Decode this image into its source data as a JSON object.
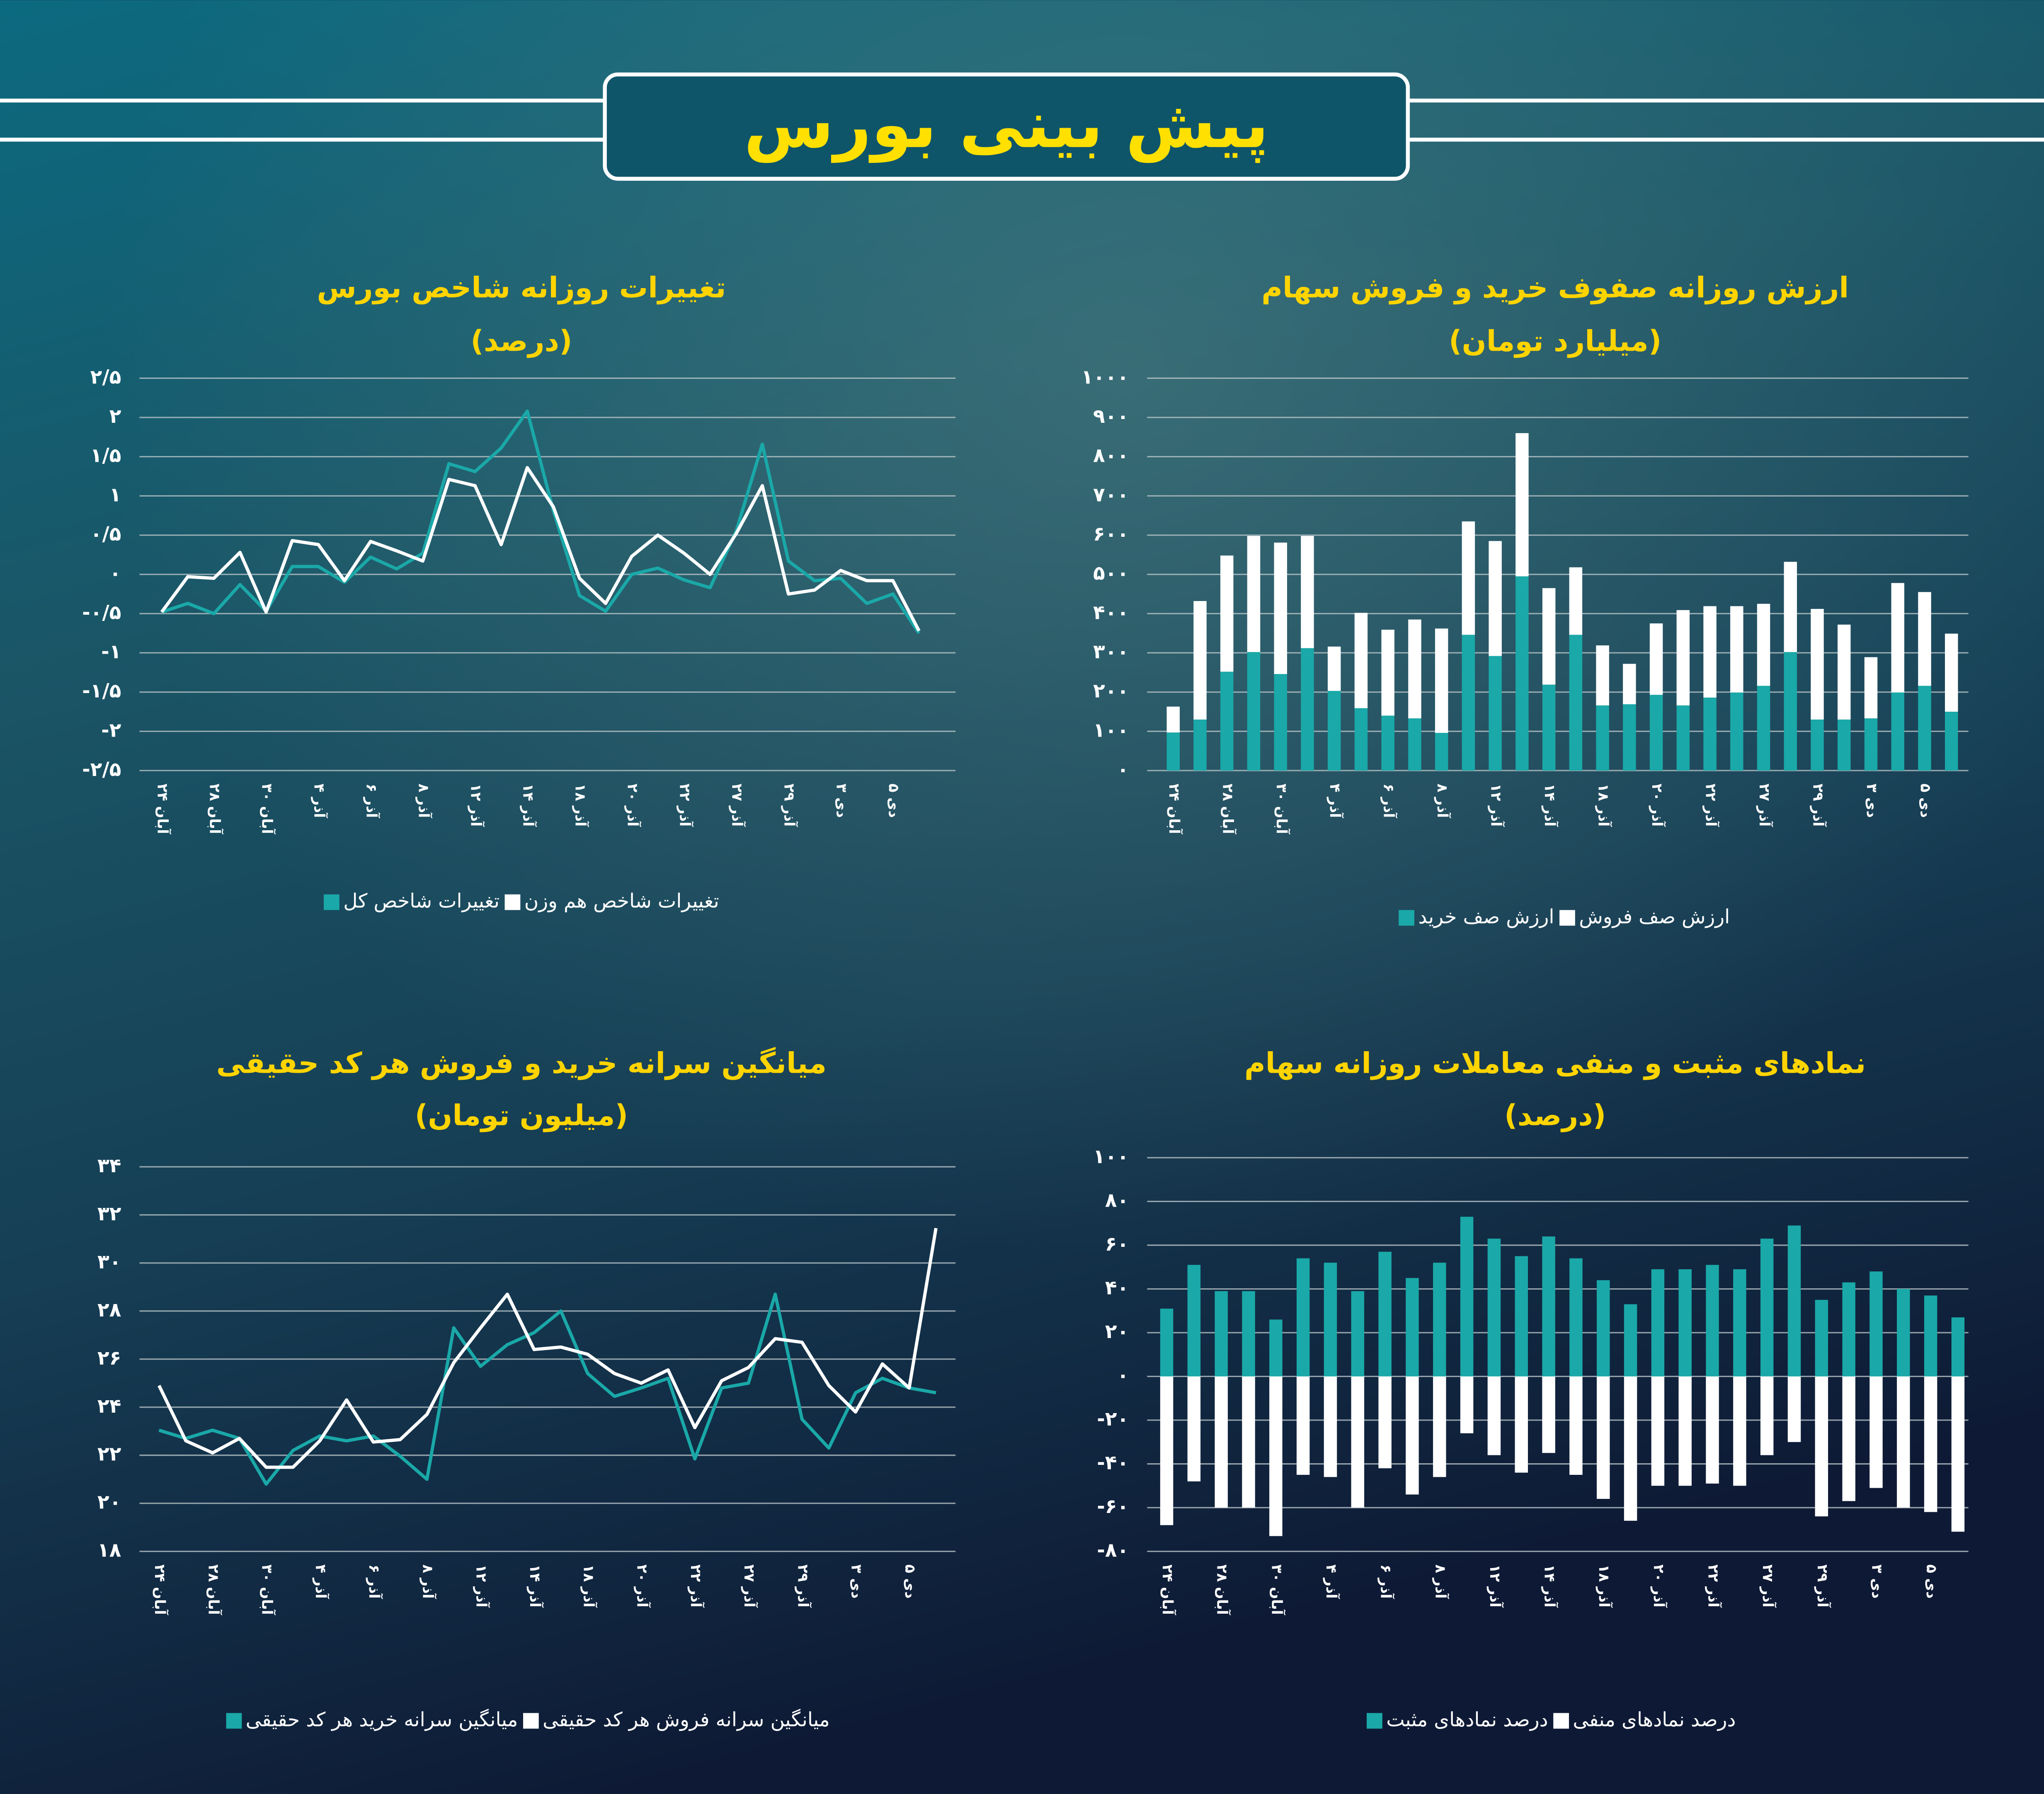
{
  "header": {
    "title": "پیش بینی بورس"
  },
  "chart_data": [
    {
      "type": "line",
      "title": "تغییرات روزانه شاخص بورس",
      "subtitle": "(درصد)",
      "categories": [
        "۲۴ آبان",
        null,
        "۲۸ آبان",
        null,
        "۳۰ آبان",
        null,
        "۴ آذر",
        null,
        "۶ آذر",
        null,
        "۸ آذر",
        null,
        "۱۲ آذر",
        null,
        "۱۴ آذر",
        null,
        "۱۸ آذر",
        null,
        "۲۰ آذر",
        null,
        "۲۲ آذر",
        null,
        "۲۷ آذر",
        null,
        "۲۹ آذر",
        null,
        "۳ دی",
        null,
        "۵ دی",
        null
      ],
      "series": [
        {
          "name": "تغییرات شاخص کل",
          "color": "#1aa8a8",
          "values": [
            -0.48,
            -0.37,
            -0.5,
            -0.13,
            -0.47,
            0.1,
            0.1,
            -0.1,
            0.22,
            0.07,
            0.27,
            1.41,
            1.31,
            1.61,
            2.08,
            0.81,
            -0.27,
            -0.47,
            0,
            0.08,
            -0.07,
            -0.17,
            0.55,
            1.66,
            0.17,
            -0.08,
            -0.05,
            -0.37,
            -0.25,
            -0.75
          ]
        },
        {
          "name": "تغییرات شاخص هم وزن",
          "color": "#ffffff",
          "values": [
            -0.48,
            -0.03,
            -0.05,
            0.28,
            -0.48,
            0.43,
            0.38,
            -0.08,
            0.42,
            0.3,
            0.17,
            1.21,
            1.13,
            0.38,
            1.36,
            0.86,
            -0.05,
            -0.37,
            0.23,
            0.5,
            0.27,
            0,
            0.52,
            1.13,
            -0.25,
            -0.2,
            0.05,
            -0.08,
            -0.08,
            -0.72
          ]
        }
      ],
      "ylim": [
        -2.5,
        2.5
      ],
      "yticks": [
        {
          "value": 2.5,
          "label": "۲/۵"
        },
        {
          "value": 2,
          "label": "۲"
        },
        {
          "value": 1.5,
          "label": "۱/۵"
        },
        {
          "value": 1,
          "label": "۱"
        },
        {
          "value": 0.5,
          "label": "۰/۵"
        },
        {
          "value": 0,
          "label": "۰"
        },
        {
          "value": -0.5,
          "label": "-۰/۵"
        },
        {
          "value": -1,
          "label": "-۱"
        },
        {
          "value": -1.5,
          "label": "-۱/۵"
        },
        {
          "value": -2,
          "label": "-۲"
        },
        {
          "value": -2.5,
          "label": "-۲/۵"
        }
      ],
      "grid": true
    },
    {
      "type": "bar",
      "stacked": true,
      "title": "ارزش روزانه صفوف خرید و فروش سهام",
      "subtitle": "(میلیارد تومان)",
      "categories": [
        "۲۴ آبان",
        null,
        "۲۸ آبان",
        null,
        "۳۰ آبان",
        null,
        "۴ آذر",
        null,
        "۶ آذر",
        null,
        "۸ آذر",
        null,
        "۱۲ آذر",
        null,
        "۱۴ آذر",
        null,
        "۱۸ آذر",
        null,
        "۲۰ آذر",
        null,
        "۲۲ آذر",
        null,
        "۲۷ آذر",
        null,
        "۲۹ آذر",
        null,
        "۳ دی",
        null,
        "۵ دی",
        null
      ],
      "series": [
        {
          "name": "ارزش صف خرید",
          "color": "#1aa8a8",
          "values": [
            97,
            130,
            252,
            302,
            246,
            312,
            203,
            159,
            140,
            133,
            96,
            346,
            292,
            495,
            219,
            346,
            166,
            169,
            193,
            166,
            186,
            199,
            216,
            302,
            130,
            130,
            133,
            199,
            216,
            150
          ]
        },
        {
          "name": "ارزش صف فروش",
          "color": "#ffffff",
          "values": [
            66,
            302,
            296,
            296,
            335,
            286,
            113,
            243,
            219,
            252,
            266,
            289,
            293,
            365,
            246,
            172,
            153,
            103,
            182,
            243,
            233,
            220,
            209,
            230,
            282,
            242,
            156,
            279,
            239,
            199
          ]
        }
      ],
      "ylim": [
        0,
        1000
      ],
      "yticks": [
        {
          "value": 0,
          "label": "۰"
        },
        {
          "value": 100,
          "label": "۱۰۰"
        },
        {
          "value": 200,
          "label": "۲۰۰"
        },
        {
          "value": 300,
          "label": "۳۰۰"
        },
        {
          "value": 400,
          "label": "۴۰۰"
        },
        {
          "value": 500,
          "label": "۵۰۰"
        },
        {
          "value": 600,
          "label": "۶۰۰"
        },
        {
          "value": 700,
          "label": "۷۰۰"
        },
        {
          "value": 800,
          "label": "۸۰۰"
        },
        {
          "value": 900,
          "label": "۹۰۰"
        },
        {
          "value": 1000,
          "label": "۱۰۰۰"
        }
      ],
      "grid": true
    },
    {
      "type": "line",
      "title": "میانگین سرانه خرید و فروش هر کد حقیقی",
      "subtitle": "(میلیون تومان)",
      "categories": [
        "۲۴ آبان",
        null,
        "۲۸ آبان",
        null,
        "۳۰ آبان",
        null,
        "۴ آذر",
        null,
        "۶ آذر",
        null,
        "۸ آذر",
        null,
        "۱۲ آذر",
        null,
        "۱۴ آذر",
        null,
        "۱۸ آذر",
        null,
        "۲۰ آذر",
        null,
        "۲۲ آذر",
        null,
        "۲۷ آذر",
        null,
        "۲۹ آذر",
        null,
        "۳ دی",
        null,
        "۵ دی",
        null
      ],
      "series": [
        {
          "name": "میانگین سرانه خرید هر کد حقیقی",
          "color": "#1aa8a8",
          "values": [
            23.04,
            22.7,
            23.04,
            22.7,
            20.8,
            22.2,
            22.8,
            22.6,
            22.8,
            21.96,
            21.0,
            27.3,
            25.7,
            26.6,
            27.1,
            28.0,
            25.4,
            24.45,
            24.8,
            25.2,
            21.85,
            24.8,
            25.0,
            28.7,
            23.5,
            22.3,
            24.6,
            25.2,
            24.8,
            24.6
          ]
        },
        {
          "name": "میانگین سرانه فروش هر کد حقیقی",
          "color": "#ffffff",
          "values": [
            24.9,
            22.6,
            22.1,
            22.7,
            21.5,
            21.5,
            22.6,
            24.3,
            22.55,
            22.65,
            23.7,
            25.85,
            27.3,
            28.7,
            26.4,
            26.5,
            26.2,
            25.4,
            25.0,
            25.55,
            23.15,
            25.1,
            25.65,
            26.85,
            26.7,
            24.9,
            23.8,
            25.8,
            24.8,
            31.45
          ]
        }
      ],
      "ylim": [
        18,
        34
      ],
      "yticks": [
        {
          "value": 18,
          "label": "۱۸"
        },
        {
          "value": 20,
          "label": "۲۰"
        },
        {
          "value": 22,
          "label": "۲۲"
        },
        {
          "value": 24,
          "label": "۲۴"
        },
        {
          "value": 26,
          "label": "۲۶"
        },
        {
          "value": 28,
          "label": "۲۸"
        },
        {
          "value": 30,
          "label": "۳۰"
        },
        {
          "value": 32,
          "label": "۳۲"
        },
        {
          "value": 34,
          "label": "۳۴"
        }
      ],
      "grid": true
    },
    {
      "type": "bar",
      "stacked": true,
      "title": "نمادهای مثبت و منفی معاملات روزانه سهام",
      "subtitle": "(درصد)",
      "categories": [
        "۲۴ آبان",
        null,
        "۲۸ آبان",
        null,
        "۳۰ آبان",
        null,
        "۴ آذر",
        null,
        "۶ آذر",
        null,
        "۸ آذر",
        null,
        "۱۲ آذر",
        null,
        "۱۴ آذر",
        null,
        "۱۸ آذر",
        null,
        "۲۰ آذر",
        null,
        "۲۲ آذر",
        null,
        "۲۷ آذر",
        null,
        "۲۹ آذر",
        null,
        "۳ دی",
        null,
        "۵ دی",
        null
      ],
      "series": [
        {
          "name": "درصد نمادهای مثبت",
          "color": "#1aa8a8",
          "values": [
            31,
            51,
            39,
            39,
            26,
            54,
            52,
            39,
            57,
            45,
            52,
            73,
            63,
            55,
            64,
            54,
            44,
            33,
            49,
            49,
            51,
            49,
            63,
            69,
            35,
            43,
            48,
            40,
            37,
            27
          ]
        },
        {
          "name": "درصد نمادهای منفی",
          "color": "#ffffff",
          "values": [
            -68,
            -48,
            -60,
            -60,
            -73,
            -45,
            -46,
            -60,
            -42,
            -54,
            -46,
            -26,
            -36,
            -44,
            -35,
            -45,
            -56,
            -66,
            -50,
            -50,
            -49,
            -50,
            -36,
            -30,
            -64,
            -57,
            -51,
            -60,
            -62,
            -71
          ]
        }
      ],
      "ylim": [
        -80,
        100
      ],
      "yticks": [
        {
          "value": -80,
          "label": "-۸۰"
        },
        {
          "value": -60,
          "label": "-۶۰"
        },
        {
          "value": -40,
          "label": "-۴۰"
        },
        {
          "value": -20,
          "label": "-۲۰"
        },
        {
          "value": 0,
          "label": "۰"
        },
        {
          "value": 20,
          "label": "۲۰"
        },
        {
          "value": 40,
          "label": "۴۰"
        },
        {
          "value": 60,
          "label": "۶۰"
        },
        {
          "value": 80,
          "label": "۸۰"
        },
        {
          "value": 100,
          "label": "۱۰۰"
        }
      ],
      "grid": true
    }
  ]
}
